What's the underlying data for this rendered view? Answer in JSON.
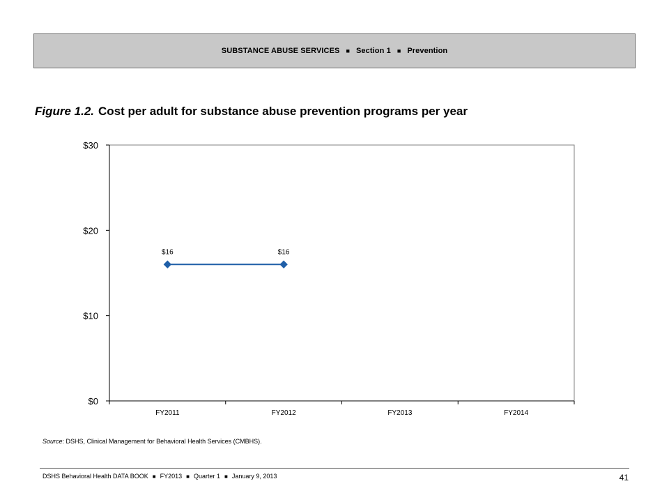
{
  "header": {
    "parts": [
      "SUBSTANCE ABUSE SERVICES",
      "Section 1",
      "Prevention"
    ],
    "separator": "■"
  },
  "figure": {
    "label": "Figure 1.2.",
    "title": "Cost per adult for substance abuse prevention programs per year"
  },
  "chart_data": {
    "type": "line",
    "title": "",
    "xlabel": "",
    "ylabel": "",
    "categories": [
      "FY2011",
      "FY2012",
      "FY2013",
      "FY2014"
    ],
    "series": [
      {
        "values": [
          16,
          16,
          null,
          null
        ],
        "data_labels": [
          "$16",
          "$16",
          "",
          ""
        ],
        "color": "#1f5fa8",
        "marker": "diamond"
      }
    ],
    "ylim": [
      0,
      30
    ],
    "yticks": [
      0,
      10,
      20,
      30
    ],
    "ytick_labels": [
      "$0",
      "$10",
      "$20",
      "$30"
    ],
    "grid": false,
    "legend": "none"
  },
  "source": {
    "label": "Source",
    "text": ": DSHS, Clinical Management for Behavioral Health Services (CMBHS)."
  },
  "footer": {
    "parts": [
      "DSHS Behavioral Health DATA BOOK",
      "FY2013",
      "Quarter 1",
      "January  9, 2013"
    ],
    "separator": "■",
    "page_number": "41"
  }
}
